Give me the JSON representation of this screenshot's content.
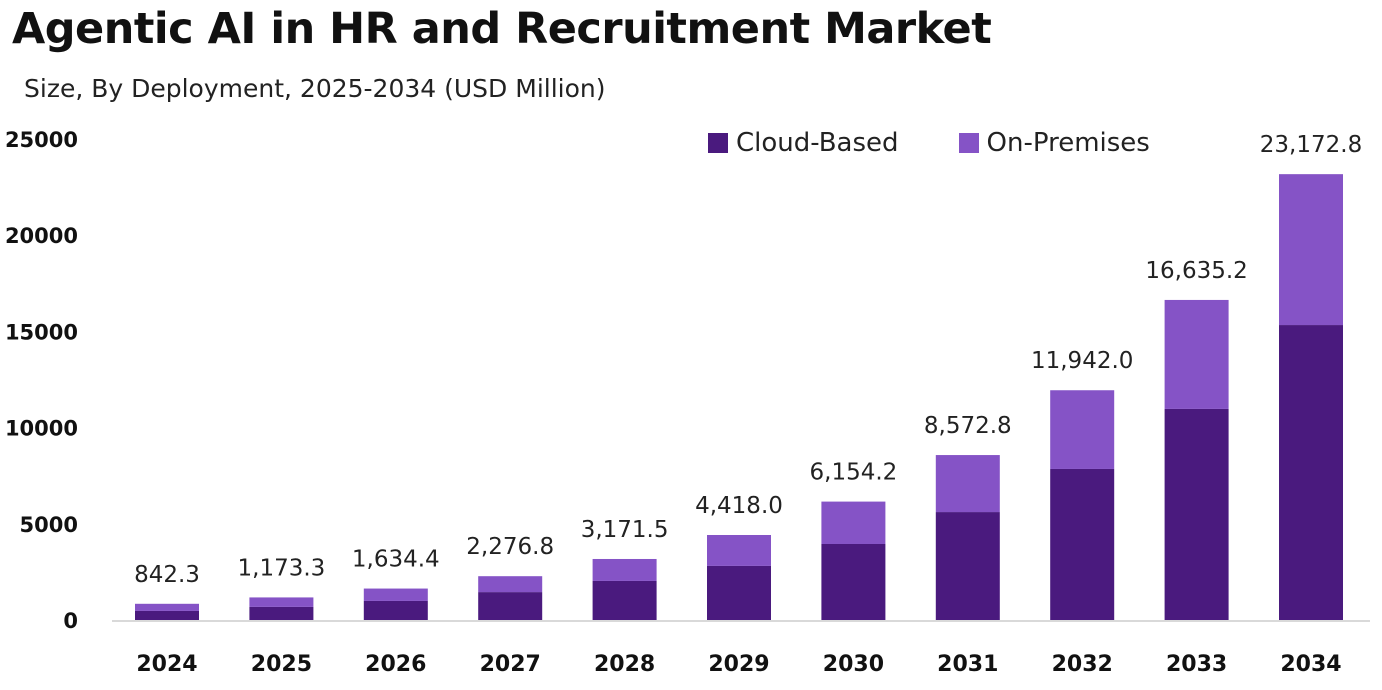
{
  "chart_data": {
    "type": "bar",
    "stacked": true,
    "title": "Agentic AI in HR and Recruitment Market",
    "subtitle": "Size, By Deployment, 2025-2034 (USD Million)",
    "xlabel": "",
    "ylabel": "",
    "ylim": [
      0,
      25000
    ],
    "yticks": [
      0,
      5000,
      10000,
      15000,
      20000,
      25000
    ],
    "grid": false,
    "legend_position": "top-right",
    "categories": [
      "2024",
      "2025",
      "2026",
      "2027",
      "2028",
      "2029",
      "2030",
      "2031",
      "2032",
      "2033",
      "2034"
    ],
    "totals": [
      842.3,
      1173.3,
      1634.4,
      2276.8,
      3171.5,
      4418.0,
      6154.2,
      8572.8,
      11942.0,
      16635.2,
      23172.8
    ],
    "total_labels": [
      "842.3",
      "1,173.3",
      "1,634.4",
      "2,276.8",
      "3,171.5",
      "4,418.0",
      "6,154.2",
      "8,572.8",
      "11,942.0",
      "16,635.2",
      "23,172.8"
    ],
    "series": [
      {
        "name": "Cloud-Based",
        "color": "#4a1a7e",
        "values": [
          470,
          680,
          990,
          1450,
          2030,
          2810,
          3950,
          5610,
          7850,
          10970,
          15330
        ]
      },
      {
        "name": "On-Premises",
        "color": "#8553c6",
        "values": [
          372.3,
          493.3,
          644.4,
          826.8,
          1141.5,
          1608.0,
          2204.2,
          2962.8,
          4092.0,
          5665.2,
          7842.8
        ]
      }
    ]
  }
}
